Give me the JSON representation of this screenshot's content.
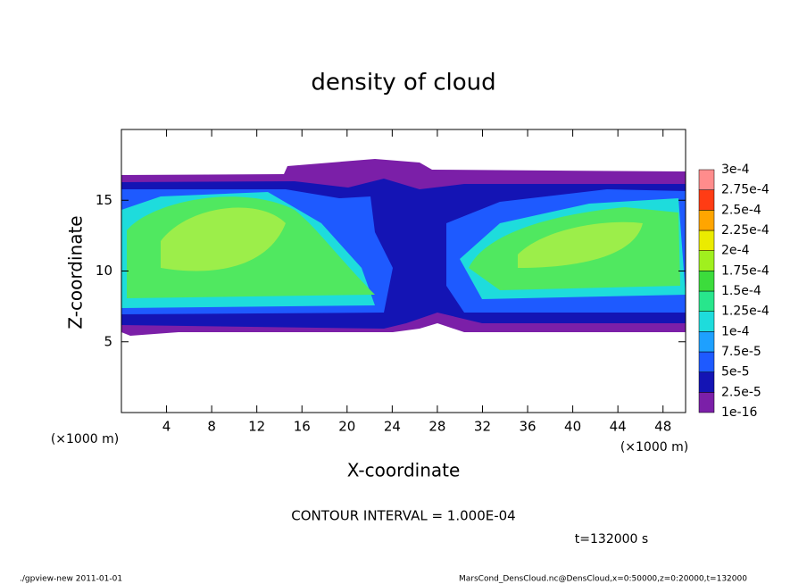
{
  "chart_data": {
    "type": "contour",
    "title": "density of cloud",
    "xlabel": "X-coordinate",
    "ylabel": "Z-coordinate",
    "x_unit_left": "(×1000 m)",
    "x_unit_right": "(×1000 m)",
    "xlim": [
      0,
      50
    ],
    "ylim": [
      0,
      20
    ],
    "xticks": [
      4,
      8,
      12,
      16,
      20,
      24,
      28,
      32,
      36,
      40,
      44,
      48
    ],
    "yticks": [
      5,
      10,
      15
    ],
    "colorbar": {
      "levels": [
        {
          "value": 1e-16,
          "label": "1e-16"
        },
        {
          "value": 2.5e-05,
          "label": "2.5e-5"
        },
        {
          "value": 5e-05,
          "label": "5e-5"
        },
        {
          "value": 7.5e-05,
          "label": "7.5e-5"
        },
        {
          "value": 0.0001,
          "label": "1e-4"
        },
        {
          "value": 0.000125,
          "label": "1.25e-4"
        },
        {
          "value": 0.00015,
          "label": "1.5e-4"
        },
        {
          "value": 0.000175,
          "label": "1.75e-4"
        },
        {
          "value": 0.0002,
          "label": "2e-4"
        },
        {
          "value": 0.000225,
          "label": "2.25e-4"
        },
        {
          "value": 0.00025,
          "label": "2.5e-4"
        },
        {
          "value": 0.000275,
          "label": "2.75e-4"
        },
        {
          "value": 0.0003,
          "label": "3e-4"
        }
      ],
      "colors": [
        "#7b1fa8",
        "#1414b4",
        "#1e5aff",
        "#1ea0ff",
        "#1edcdc",
        "#28e68c",
        "#3cdc3c",
        "#a0f01e",
        "#ebeb00",
        "#ffa500",
        "#ff3c14",
        "#ff8c8c"
      ]
    },
    "contour_interval": "CONTOUR INTERVAL = 1.000E-04",
    "time_label": "t=132000 s",
    "footer_left": "./gpview-new  2011-01-01",
    "footer_right": "MarsCond_DensCloud.nc@DensCloud,x=0:50000,z=0:20000,t=132000"
  }
}
